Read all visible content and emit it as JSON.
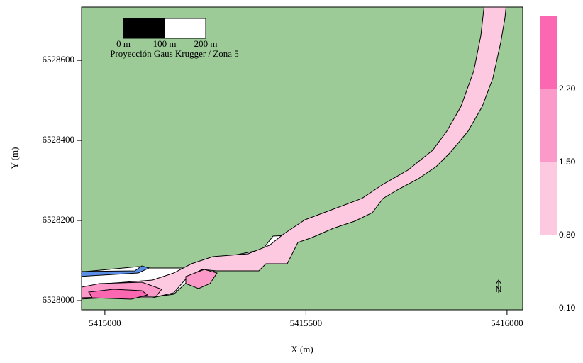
{
  "chart_data": {
    "type": "contour-map",
    "xlabel": "X (m)",
    "ylabel": "Y (m)",
    "xlim": [
      5414942,
      5416039
    ],
    "ylim": [
      6527977,
      6528733
    ],
    "xticks": [
      5415000,
      5415500,
      5416000
    ],
    "yticks": [
      6528000,
      6528200,
      6528400,
      6528600
    ],
    "background_color": "#9ccb98",
    "scale_bar": {
      "labels": [
        "0 m",
        "100 m",
        "200 m"
      ],
      "projection": "Proyección Gaus Krugger / Zona 5"
    },
    "north_label": "N",
    "colorbar": {
      "clim": [
        0.1,
        2.9
      ],
      "levels": [
        {
          "value": 0.1,
          "label": "0.10"
        },
        {
          "value": 0.8,
          "label": "0.80"
        },
        {
          "value": 1.5,
          "label": "1.50"
        },
        {
          "value": 2.2,
          "label": "2.20"
        }
      ],
      "colors": [
        "#ffffff",
        "#fcc9e1",
        "#fb9ac9",
        "#fb67b1"
      ]
    }
  }
}
